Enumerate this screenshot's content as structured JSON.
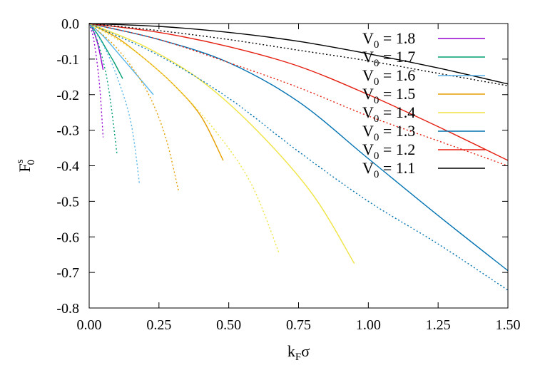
{
  "chart_data": {
    "type": "line",
    "xlabel": {
      "main": "k",
      "sub": "F",
      "tail": "σ"
    },
    "ylabel": {
      "main": "F",
      "sup": "s",
      "sub": "0"
    },
    "xlim": [
      0.0,
      1.5
    ],
    "ylim": [
      -0.8,
      0.0
    ],
    "xticks": [
      "0.00",
      "0.25",
      "0.50",
      "0.75",
      "1.00",
      "1.25",
      "1.50"
    ],
    "yticks": [
      "0.0",
      "-0.1",
      "-0.2",
      "-0.3",
      "-0.4",
      "-0.5",
      "-0.6",
      "-0.7",
      "-0.8"
    ],
    "grid": false,
    "legend_position": "top-right",
    "series": [
      {
        "name": "V0 = 1.8",
        "legend": {
          "pre": "V",
          "sub": "0",
          "post": " = 1.8"
        },
        "color": "#9400d3",
        "solid": [
          [
            0.0,
            0.0
          ],
          [
            0.015,
            -0.02
          ],
          [
            0.03,
            -0.055
          ],
          [
            0.04,
            -0.09
          ],
          [
            0.05,
            -0.13
          ]
        ],
        "dotted": [
          [
            0.0,
            0.0
          ],
          [
            0.015,
            -0.04
          ],
          [
            0.03,
            -0.12
          ],
          [
            0.04,
            -0.2
          ],
          [
            0.05,
            -0.32
          ]
        ]
      },
      {
        "name": "V0 = 1.7",
        "legend": {
          "pre": "V",
          "sub": "0",
          "post": " = 1.7"
        },
        "color": "#009e73",
        "solid": [
          [
            0.0,
            0.0
          ],
          [
            0.03,
            -0.03
          ],
          [
            0.06,
            -0.07
          ],
          [
            0.09,
            -0.11
          ],
          [
            0.12,
            -0.155
          ]
        ],
        "dotted": [
          [
            0.0,
            0.0
          ],
          [
            0.03,
            -0.05
          ],
          [
            0.06,
            -0.14
          ],
          [
            0.08,
            -0.24
          ],
          [
            0.1,
            -0.37
          ]
        ]
      },
      {
        "name": "V0 = 1.6",
        "legend": {
          "pre": "V",
          "sub": "0",
          "post": " = 1.6"
        },
        "color": "#56b4e9",
        "solid": [
          [
            0.0,
            0.0
          ],
          [
            0.05,
            -0.035
          ],
          [
            0.1,
            -0.08
          ],
          [
            0.16,
            -0.135
          ],
          [
            0.23,
            -0.2
          ]
        ],
        "dotted": [
          [
            0.0,
            0.0
          ],
          [
            0.05,
            -0.06
          ],
          [
            0.1,
            -0.15
          ],
          [
            0.15,
            -0.28
          ],
          [
            0.18,
            -0.45
          ]
        ]
      },
      {
        "name": "V0 = 1.5",
        "legend": {
          "pre": "V",
          "sub": "0",
          "post": " = 1.5"
        },
        "color": "#e69f00",
        "solid": [
          [
            0.0,
            0.0
          ],
          [
            0.1,
            -0.04
          ],
          [
            0.2,
            -0.1
          ],
          [
            0.3,
            -0.17
          ],
          [
            0.4,
            -0.26
          ],
          [
            0.48,
            -0.385
          ]
        ],
        "dotted": [
          [
            0.0,
            0.0
          ],
          [
            0.1,
            -0.07
          ],
          [
            0.2,
            -0.18
          ],
          [
            0.27,
            -0.31
          ],
          [
            0.32,
            -0.47
          ]
        ]
      },
      {
        "name": "V0 = 1.4",
        "legend": {
          "pre": "V",
          "sub": "0",
          "post": " = 1.4"
        },
        "color": "#f0e442",
        "solid": [
          [
            0.0,
            0.0
          ],
          [
            0.2,
            -0.065
          ],
          [
            0.4,
            -0.16
          ],
          [
            0.6,
            -0.3
          ],
          [
            0.8,
            -0.48
          ],
          [
            0.95,
            -0.675
          ]
        ],
        "dotted": [
          [
            0.0,
            0.0
          ],
          [
            0.15,
            -0.07
          ],
          [
            0.3,
            -0.17
          ],
          [
            0.45,
            -0.3
          ],
          [
            0.58,
            -0.45
          ],
          [
            0.68,
            -0.645
          ]
        ]
      },
      {
        "name": "V0 = 1.3",
        "legend": {
          "pre": "V",
          "sub": "0",
          "post": " = 1.3"
        },
        "color": "#0072b2",
        "solid": [
          [
            0.0,
            0.0
          ],
          [
            0.25,
            -0.045
          ],
          [
            0.5,
            -0.11
          ],
          [
            0.75,
            -0.22
          ],
          [
            1.0,
            -0.38
          ],
          [
            1.25,
            -0.54
          ],
          [
            1.5,
            -0.695
          ]
        ],
        "dotted": [
          [
            0.0,
            0.0
          ],
          [
            0.25,
            -0.09
          ],
          [
            0.5,
            -0.21
          ],
          [
            0.75,
            -0.36
          ],
          [
            1.0,
            -0.5
          ],
          [
            1.25,
            -0.62
          ],
          [
            1.5,
            -0.75
          ]
        ]
      },
      {
        "name": "V0 = 1.2",
        "legend": {
          "pre": "V",
          "sub": "0",
          "post": " = 1.2"
        },
        "color": "#e51e10",
        "solid": [
          [
            0.0,
            0.0
          ],
          [
            0.25,
            -0.025
          ],
          [
            0.5,
            -0.065
          ],
          [
            0.75,
            -0.12
          ],
          [
            1.0,
            -0.2
          ],
          [
            1.25,
            -0.29
          ],
          [
            1.5,
            -0.385
          ]
        ],
        "dotted": [
          [
            0.0,
            0.0
          ],
          [
            0.25,
            -0.045
          ],
          [
            0.5,
            -0.11
          ],
          [
            0.75,
            -0.18
          ],
          [
            1.0,
            -0.26
          ],
          [
            1.25,
            -0.33
          ],
          [
            1.5,
            -0.4
          ]
        ]
      },
      {
        "name": "V0 = 1.1",
        "legend": {
          "pre": "V",
          "sub": "0",
          "post": " = 1.1"
        },
        "color": "#000000",
        "solid": [
          [
            0.0,
            0.0
          ],
          [
            0.25,
            -0.008
          ],
          [
            0.5,
            -0.025
          ],
          [
            0.75,
            -0.05
          ],
          [
            1.0,
            -0.085
          ],
          [
            1.25,
            -0.125
          ],
          [
            1.5,
            -0.17
          ]
        ],
        "dotted": [
          [
            0.0,
            0.0
          ],
          [
            0.25,
            -0.02
          ],
          [
            0.5,
            -0.045
          ],
          [
            0.75,
            -0.075
          ],
          [
            1.0,
            -0.105
          ],
          [
            1.25,
            -0.14
          ],
          [
            1.5,
            -0.175
          ]
        ]
      }
    ]
  }
}
